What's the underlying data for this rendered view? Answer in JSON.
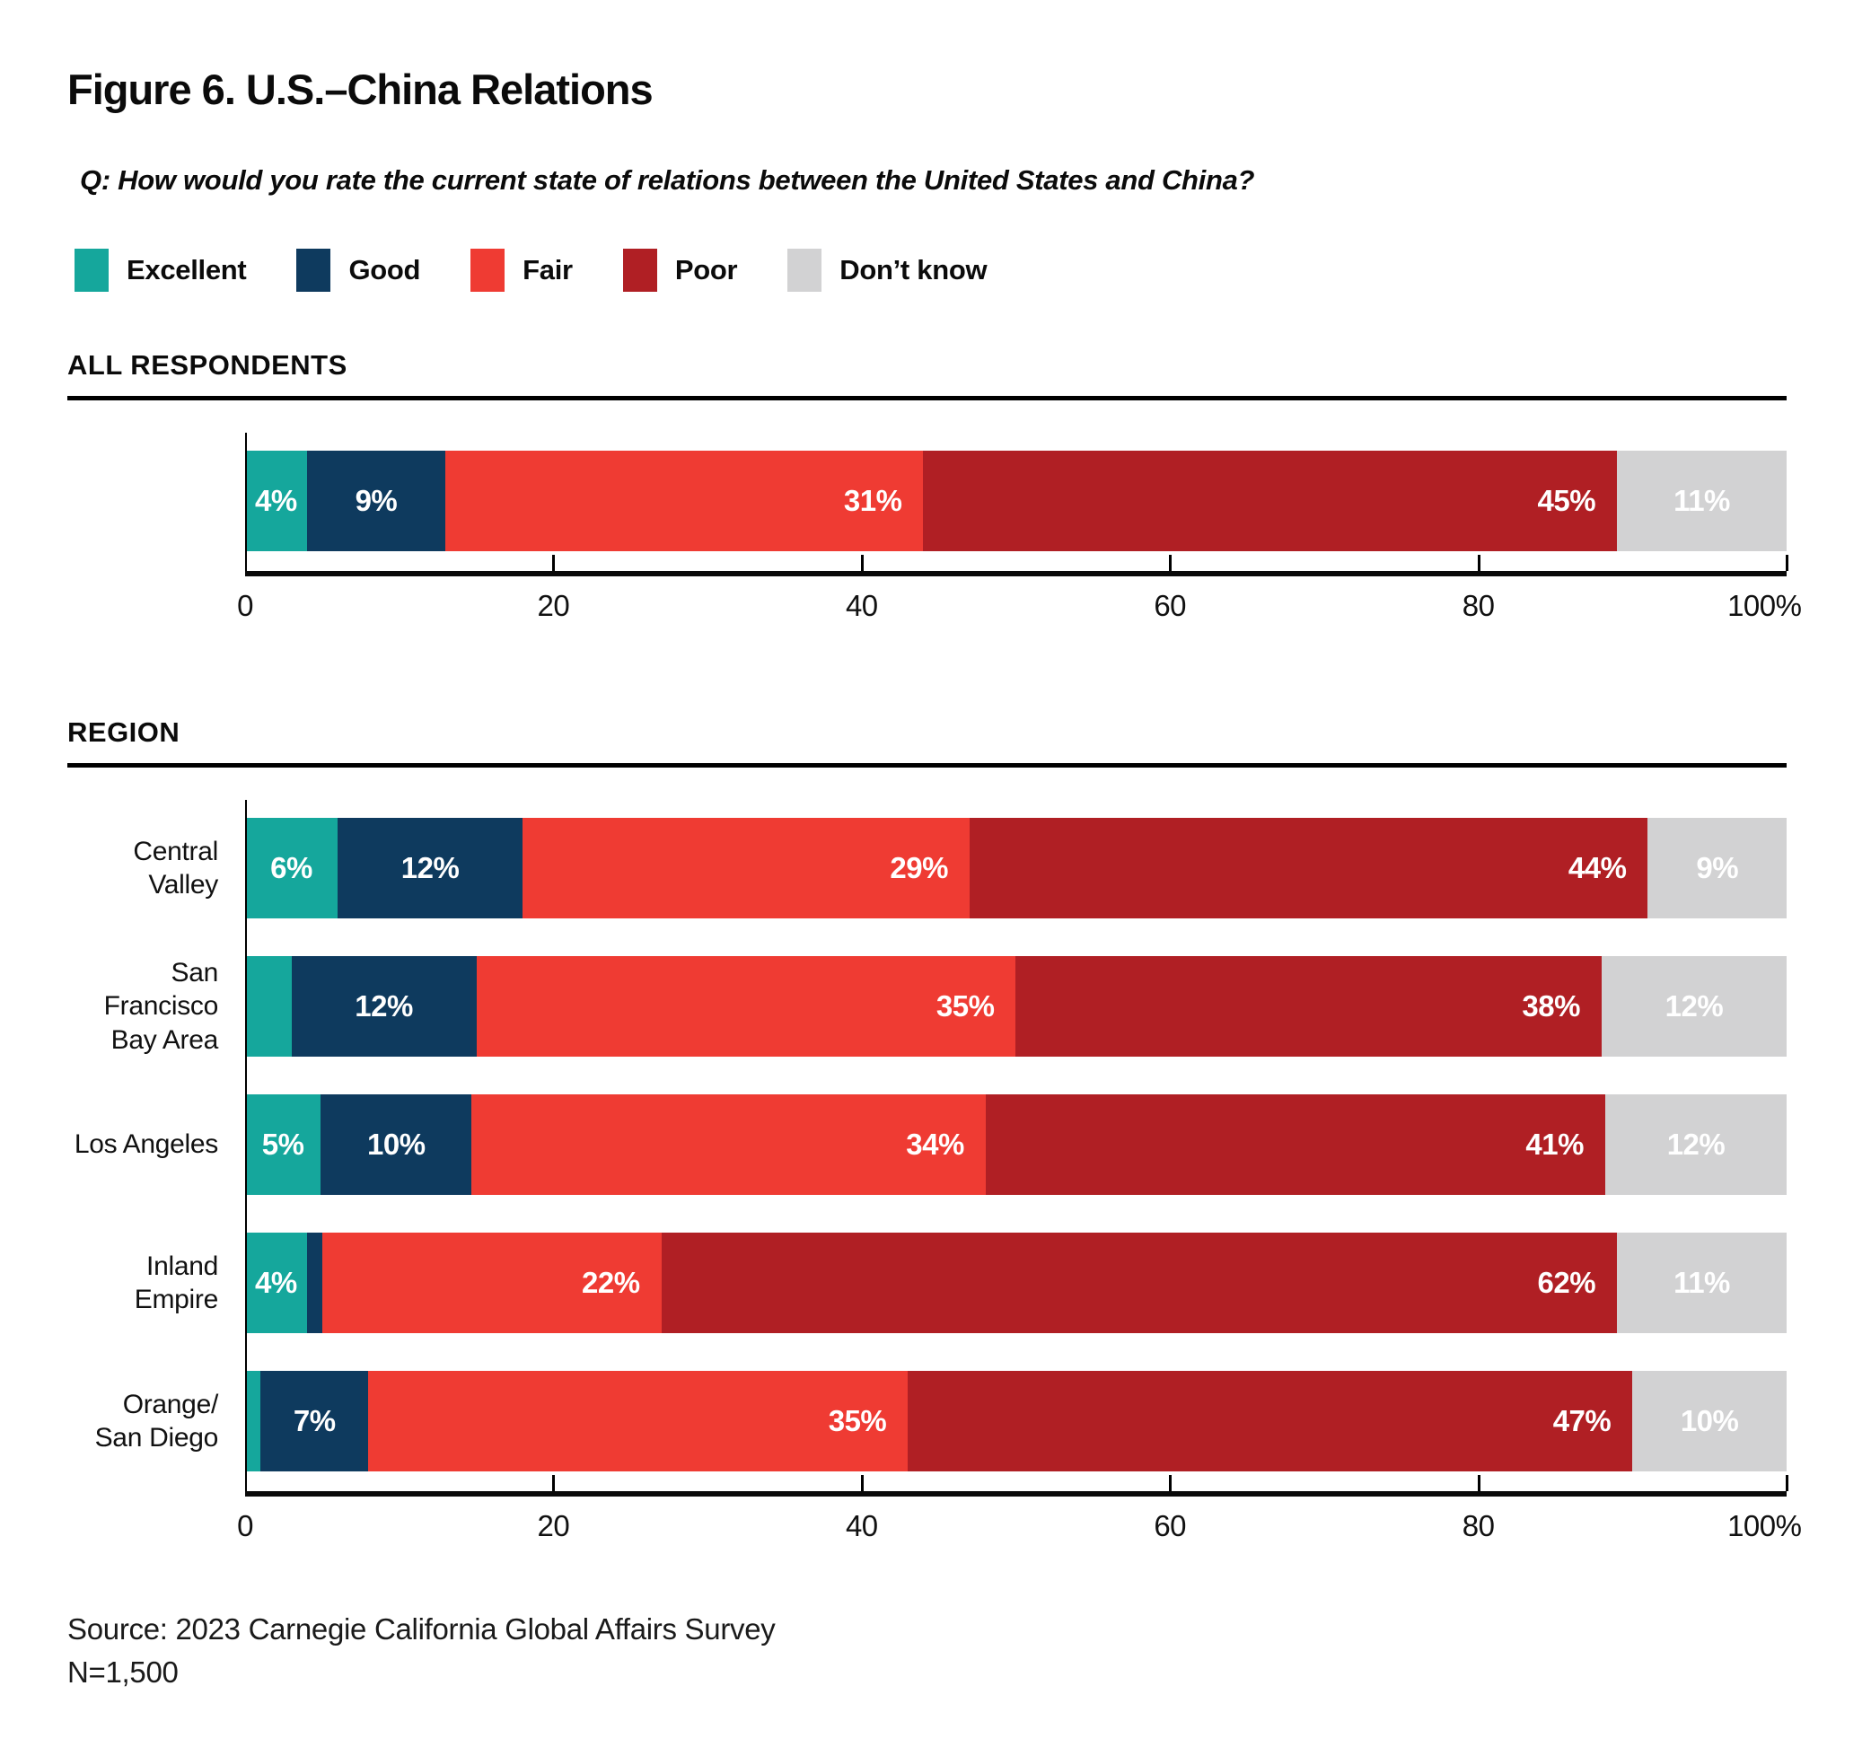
{
  "title": "Figure 6. U.S.–China Relations",
  "question": "Q: How would you rate the current state of relations between the United States and China?",
  "colors": {
    "excellent": "#15A79C",
    "good": "#0E3A5E",
    "fair": "#EF3B33",
    "poor": "#B01F24",
    "dont_know": "#D2D2D3",
    "axis": "#0a0a0a",
    "bar_label_text": "#ffffff"
  },
  "legend": [
    {
      "label": "Excellent",
      "color": "#15A79C"
    },
    {
      "label": "Good",
      "color": "#0E3A5E"
    },
    {
      "label": "Fair",
      "color": "#EF3B33"
    },
    {
      "label": "Poor",
      "color": "#B01F24"
    },
    {
      "label": "Don’t know",
      "color": "#D2D2D3"
    }
  ],
  "chart_data": {
    "type": "bar",
    "variant": "horizontal-stacked-100",
    "title": "Figure 6. U.S.–China Relations",
    "subtitle": "Q: How would you rate the current state of relations between the United States and China?",
    "categories": [
      {
        "name": "Excellent",
        "color": "#15A79C",
        "label_align": "center"
      },
      {
        "name": "Good",
        "color": "#0E3A5E",
        "label_align": "center"
      },
      {
        "name": "Fair",
        "color": "#EF3B33",
        "label_align": "right"
      },
      {
        "name": "Poor",
        "color": "#B01F24",
        "label_align": "right"
      },
      {
        "name": "Don’t know",
        "color": "#D2D2D3",
        "label_align": "center"
      }
    ],
    "axis": {
      "range": [
        0,
        100
      ],
      "tick_values": [
        0,
        20,
        40,
        60,
        80,
        100
      ],
      "tick_labels": [
        "0",
        "20",
        "40",
        "60",
        "80",
        "100%"
      ]
    },
    "groups": [
      {
        "heading": "ALL RESPONDENTS",
        "rows": [
          {
            "label": "",
            "values": [
              4,
              9,
              31,
              45,
              11
            ],
            "labels": [
              "4%",
              "9%",
              "31%",
              "45%",
              "11%"
            ]
          }
        ]
      },
      {
        "heading": "REGION",
        "rows": [
          {
            "label": "Central Valley",
            "values": [
              6,
              12,
              29,
              44,
              9
            ],
            "labels": [
              "6%",
              "12%",
              "29%",
              "44%",
              "9%"
            ]
          },
          {
            "label": "San Francisco\nBay Area",
            "values": [
              3,
              12,
              35,
              38,
              12
            ],
            "labels": [
              "",
              "12%",
              "35%",
              "38%",
              "12%"
            ]
          },
          {
            "label": "Los Angeles",
            "values": [
              5,
              10,
              34,
              41,
              12
            ],
            "labels": [
              "5%",
              "10%",
              "34%",
              "41%",
              "12%"
            ]
          },
          {
            "label": "Inland Empire",
            "values": [
              4,
              1,
              22,
              62,
              11
            ],
            "labels": [
              "4%",
              "",
              "22%",
              "62%",
              "11%"
            ]
          },
          {
            "label": "Orange/\nSan Diego",
            "values": [
              1,
              7,
              35,
              47,
              10
            ],
            "labels": [
              "",
              "7%",
              "35%",
              "47%",
              "10%"
            ]
          }
        ]
      }
    ],
    "legend_position": "top",
    "grid": false
  },
  "source": {
    "line1": "Source: 2023 Carnegie California Global Affairs Survey",
    "line2": "N=1,500"
  }
}
